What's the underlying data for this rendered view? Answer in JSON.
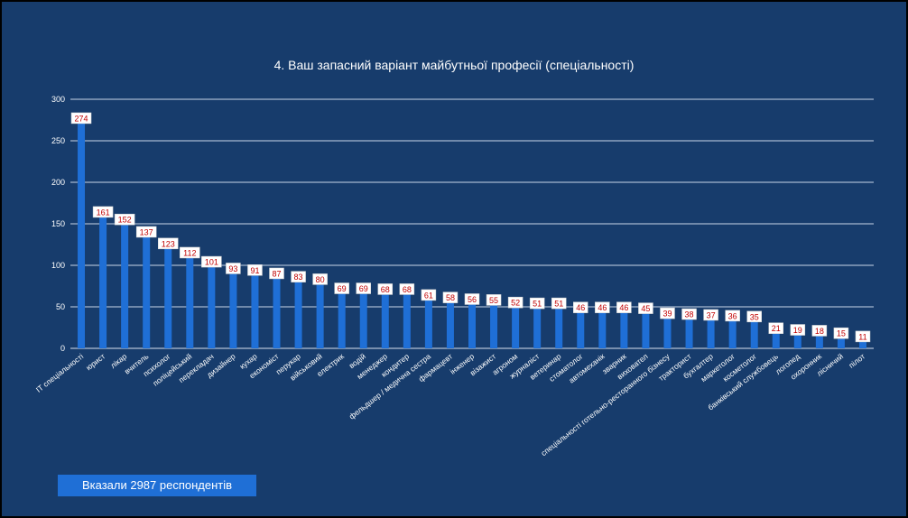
{
  "slide": {
    "background": "#173c6c",
    "footer_note": "Вказали 2987 респондентів"
  },
  "chart_data": {
    "type": "bar",
    "title": "4. Ваш запасний варіант майбутньої професії (спеціальності)",
    "xlabel": "",
    "ylabel": "",
    "ylim": [
      0,
      300
    ],
    "yticks": [
      0,
      50,
      100,
      150,
      200,
      250,
      300
    ],
    "grid": true,
    "legend": "none",
    "bar_color": "#1f6fd6",
    "label_text_color": "#c00000",
    "categories": [
      "ІТ спеціальності",
      "юрист",
      "лікар",
      "вчитель",
      "психолог",
      "поліцейський",
      "перекладач",
      "дизайнер",
      "кухар",
      "економіст",
      "перукар",
      "військовий",
      "електрик",
      "водій",
      "менеджер",
      "кондитер",
      "фельдшер / медична сестра",
      "фармацевт",
      "інженер",
      "візажист",
      "агроном",
      "журналіст",
      "ветеринар",
      "стоматолог",
      "автомеханік",
      "зварник",
      "виховател",
      "спеціальності готельно-ресторанного бізнесу",
      "тракторист",
      "бухгалтер",
      "маркетолог",
      "косметолог",
      "банківський службовець",
      "логопед",
      "охоронник",
      "лісничий",
      "пілот"
    ],
    "values": [
      274,
      161,
      152,
      137,
      123,
      112,
      101,
      93,
      91,
      87,
      83,
      80,
      69,
      69,
      68,
      68,
      61,
      58,
      56,
      55,
      52,
      51,
      51,
      46,
      46,
      46,
      45,
      39,
      38,
      37,
      36,
      35,
      21,
      19,
      18,
      15,
      11
    ],
    "data_labels": [
      "274",
      "161",
      "152",
      "137",
      "123",
      "112",
      "101",
      "93",
      "91",
      "87",
      "83",
      "80",
      "69",
      "69",
      "68",
      "68",
      "61",
      "58",
      "56",
      "55",
      "52",
      "51",
      "51",
      "46",
      "46",
      "46",
      "45",
      "39",
      "38",
      "37",
      "36",
      "35",
      "21",
      "19",
      "18",
      "15",
      "11"
    ]
  }
}
